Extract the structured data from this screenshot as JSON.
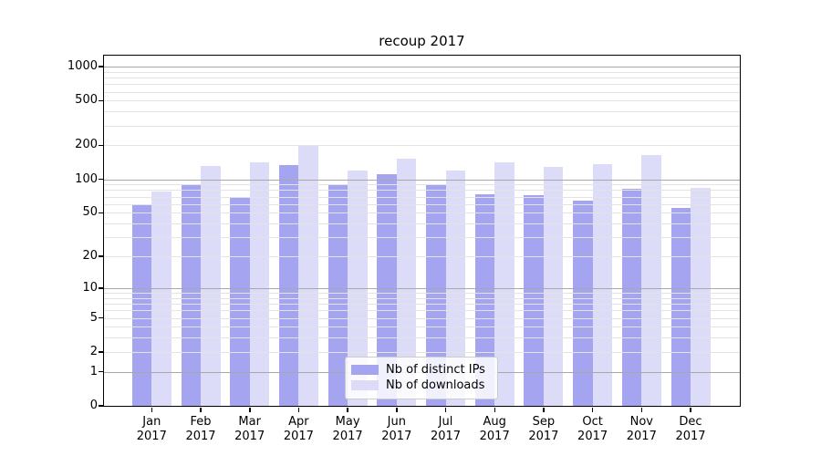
{
  "title": "recoup 2017",
  "legend": {
    "items": [
      {
        "label": "Nb of distinct IPs",
        "color": "#a4a4f0"
      },
      {
        "label": "Nb of downloads",
        "color": "#dcdcf8"
      }
    ]
  },
  "colors": {
    "bar_distinct_ips": "#a4a4f0",
    "bar_downloads": "#dcdcf8",
    "grid_major": "#a8a8a8",
    "grid_minor": "#e3e3e3",
    "spine": "#000000",
    "legend_border": "#cccccc",
    "background": "#ffffff",
    "text": "#000000"
  },
  "chart_data": {
    "type": "bar",
    "title": "recoup 2017",
    "categories": [
      "Jan 2017",
      "Feb 2017",
      "Mar 2017",
      "Apr 2017",
      "May 2017",
      "Jun 2017",
      "Jul 2017",
      "Aug 2017",
      "Sep 2017",
      "Oct 2017",
      "Nov 2017",
      "Dec 2017"
    ],
    "series": [
      {
        "name": "Nb of distinct IPs",
        "color": "#a4a4f0",
        "values": [
          59,
          89,
          70,
          135,
          88,
          110,
          89,
          74,
          72,
          64,
          82,
          55
        ]
      },
      {
        "name": "Nb of downloads",
        "color": "#dcdcf8",
        "values": [
          77,
          131,
          142,
          203,
          119,
          153,
          120,
          141,
          129,
          137,
          165,
          83
        ]
      }
    ],
    "xlabel": "",
    "ylabel": "",
    "yscale": "log1p",
    "ylim": [
      0,
      1250
    ],
    "y_ticks": [
      0,
      1,
      2,
      5,
      10,
      20,
      50,
      100,
      200,
      500,
      1000
    ],
    "grid": "horizontal; major gridlines at 1,10,100,1000 darker; minor log gridlines lighter; gridlines drawn above bars",
    "legend_position": "lower center inside plot"
  }
}
